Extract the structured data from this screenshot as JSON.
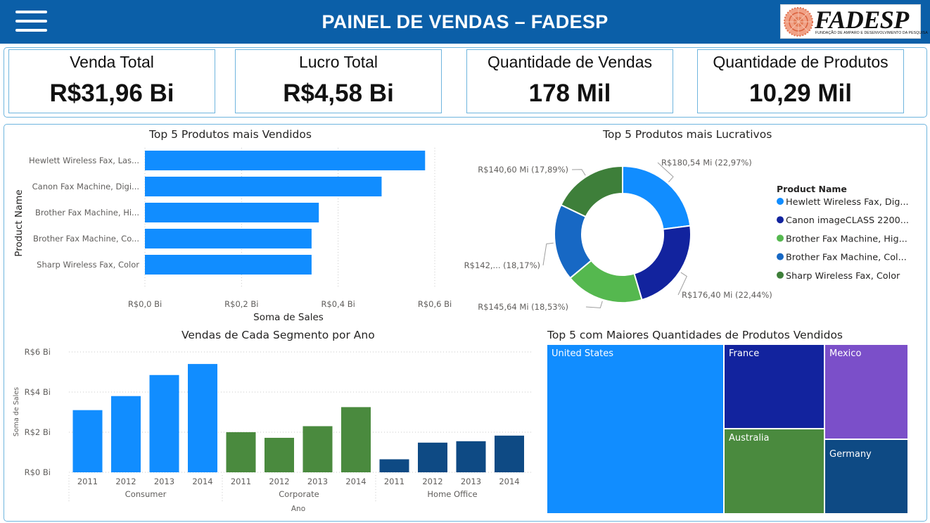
{
  "header": {
    "title": "PAINEL DE VENDAS – FADESP",
    "logo_text": "FADESP",
    "logo_subtitle": "FUNDAÇÃO DE AMPARO E DESENVOLVIMENTO DA PESQUISA"
  },
  "kpis": [
    {
      "label": "Venda Total",
      "value": "R$31,96 Bi"
    },
    {
      "label": "Lucro Total",
      "value": "R$4,58 Bi"
    },
    {
      "label": "Quantidade de Vendas",
      "value": "178 Mil"
    },
    {
      "label": "Quantidade de Produtos",
      "value": "10,29 Mil"
    }
  ],
  "colors": {
    "header": "#0b5fa8",
    "bar_blue": "#118dff",
    "consumer": "#118dff",
    "corporate": "#4a8a3e",
    "home_office": "#0e4a84"
  },
  "chart_data": [
    {
      "type": "bar",
      "orientation": "horizontal",
      "title": "Top 5 Produtos mais Vendidos",
      "xlabel": "Soma de Sales",
      "ylabel": "Product Name",
      "categories": [
        "Hewlett Wireless Fax, Las...",
        "Canon Fax Machine, Digi...",
        "Brother Fax Machine, Hi...",
        "Brother Fax Machine, Co...",
        "Sharp Wireless Fax, Color"
      ],
      "values": [
        0.58,
        0.49,
        0.36,
        0.345,
        0.345
      ],
      "xlim": [
        0,
        0.6
      ],
      "x_ticks": [
        "R$0,0 Bi",
        "R$0,2 Bi",
        "R$0,4 Bi",
        "R$0,6 Bi"
      ],
      "grid": true
    },
    {
      "type": "pie",
      "donut": true,
      "title": "Top 5 Produtos mais Lucrativos",
      "legend_title": "Product Name",
      "legend_position": "right",
      "slices": [
        {
          "name": "Hewlett Wireless Fax, Dig...",
          "value": 180.54,
          "label": "R$180,54 Mi (22,97%)",
          "color": "#118dff"
        },
        {
          "name": "Canon imageCLASS 2200...",
          "value": 176.4,
          "label": "R$176,40 Mi (22,44%)",
          "color": "#12239e"
        },
        {
          "name": "Brother Fax Machine, Hig...",
          "value": 145.64,
          "label": "R$145,64 Mi (18,53%)",
          "color": "#55b84f"
        },
        {
          "name": "Brother Fax Machine, Col...",
          "value": 142.72,
          "label": "R$142,... (18,17%)",
          "color": "#1768c4"
        },
        {
          "name": "Sharp Wireless Fax, Color",
          "value": 140.6,
          "label": "R$140,60 Mi (17,89%)",
          "color": "#3e7f3a"
        }
      ]
    },
    {
      "type": "bar",
      "title": "Vendas de Cada Segmento por Ano",
      "xlabel": "Ano",
      "ylabel": "Soma de Sales",
      "ylim": [
        0,
        6
      ],
      "y_ticks": [
        "R$0 Bi",
        "R$2 Bi",
        "R$4 Bi",
        "R$6 Bi"
      ],
      "groups": [
        {
          "name": "Consumer",
          "years": [
            "2011",
            "2012",
            "2013",
            "2014"
          ],
          "values": [
            3.1,
            3.8,
            4.85,
            5.4
          ]
        },
        {
          "name": "Corporate",
          "years": [
            "2011",
            "2012",
            "2013",
            "2014"
          ],
          "values": [
            2.0,
            1.72,
            2.3,
            3.25
          ]
        },
        {
          "name": "Home Office",
          "years": [
            "2011",
            "2012",
            "2013",
            "2014"
          ],
          "values": [
            0.65,
            1.48,
            1.55,
            1.83
          ]
        }
      ],
      "grid": true
    },
    {
      "type": "treemap",
      "title": "Top 5 com Maiores Quantidades de Produtos Vendidos",
      "cells": [
        {
          "name": "United States",
          "color": "#118dff"
        },
        {
          "name": "France",
          "color": "#12239e"
        },
        {
          "name": "Mexico",
          "color": "#7b4fc9"
        },
        {
          "name": "Australia",
          "color": "#4a8a3e"
        },
        {
          "name": "Germany",
          "color": "#0e4a84"
        }
      ]
    }
  ]
}
